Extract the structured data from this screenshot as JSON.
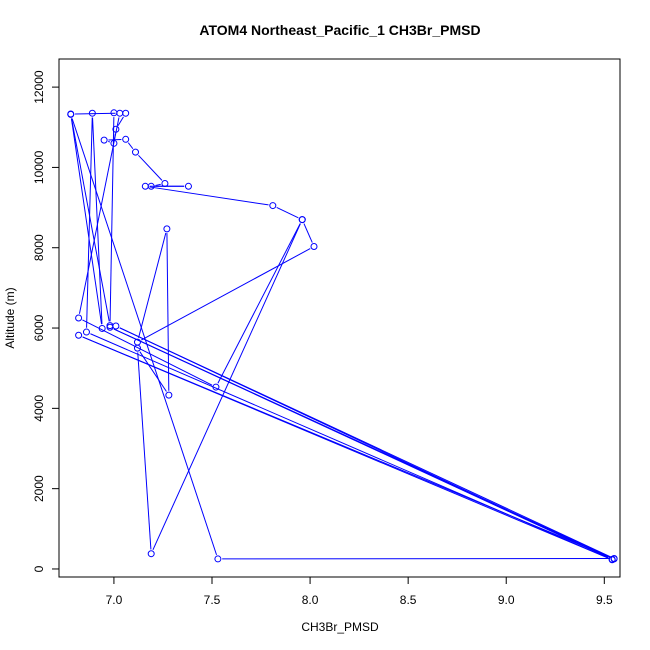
{
  "chart_data": {
    "type": "line",
    "title": "ATOM4 Northeast_Pacific_1 CH3Br_PMSD",
    "xlabel": "CH3Br_PMSD",
    "ylabel": "Altitude (m)",
    "xlim": [
      6.72,
      9.58
    ],
    "ylim": [
      -200,
      12700
    ],
    "xticks": [
      7.0,
      7.5,
      8.0,
      8.5,
      9.0,
      9.5
    ],
    "xtick_labels": [
      "7.0",
      "7.5",
      "8.0",
      "8.5",
      "9.0",
      "9.5"
    ],
    "yticks": [
      0,
      2000,
      4000,
      6000,
      8000,
      10000,
      12000
    ],
    "ytick_labels": [
      "0",
      "2000",
      "4000",
      "6000",
      "8000",
      "10000",
      "12000"
    ],
    "color": "#0000ff",
    "markers": "open-circle",
    "series": [
      {
        "name": "",
        "points": [
          [
            7.06,
            11350
          ],
          [
            7.01,
            10950
          ],
          [
            7.0,
            10600
          ],
          [
            6.95,
            10680
          ],
          [
            7.06,
            10700
          ],
          [
            7.11,
            10380
          ],
          [
            7.26,
            9600
          ],
          [
            7.19,
            9530
          ],
          [
            7.38,
            9530
          ],
          [
            7.16,
            9530
          ],
          [
            7.81,
            9050
          ],
          [
            7.96,
            8700
          ],
          [
            8.02,
            8030
          ],
          [
            7.12,
            5650
          ],
          [
            7.27,
            8470
          ],
          [
            7.28,
            4330
          ],
          [
            7.12,
            5500
          ],
          [
            7.19,
            380
          ],
          [
            7.96,
            8700
          ],
          [
            7.52,
            4530
          ],
          [
            6.82,
            6250
          ],
          [
            7.03,
            11350
          ],
          [
            6.78,
            11330
          ],
          [
            6.94,
            5990
          ],
          [
            6.89,
            11350
          ],
          [
            6.86,
            5900
          ],
          [
            9.54,
            230
          ],
          [
            6.82,
            5820
          ],
          [
            9.55,
            250
          ],
          [
            6.98,
            6020
          ],
          [
            9.54,
            240
          ],
          [
            7.01,
            6050
          ],
          [
            9.55,
            260
          ],
          [
            7.53,
            250
          ],
          [
            6.78,
            11320
          ],
          [
            6.98,
            6060
          ],
          [
            7.0,
            11360
          ]
        ]
      }
    ]
  }
}
